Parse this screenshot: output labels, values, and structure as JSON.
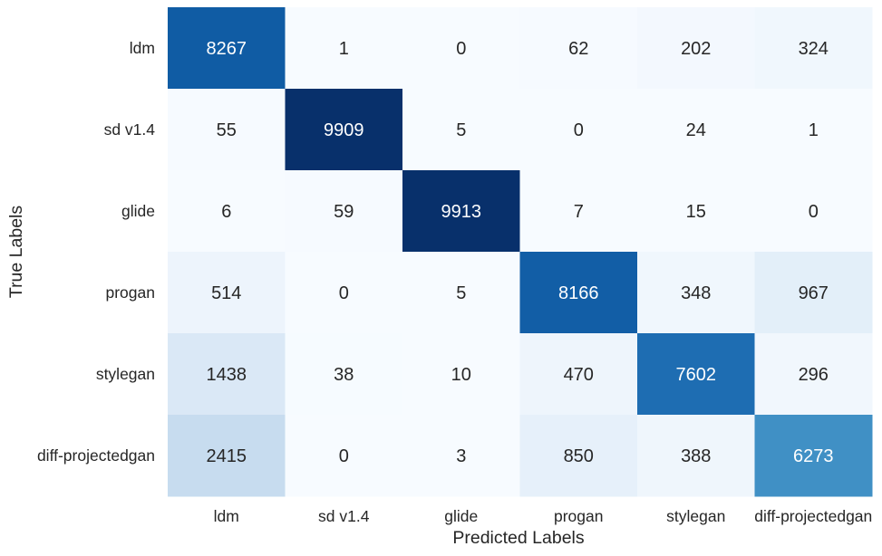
{
  "chart_data": {
    "type": "heatmap",
    "title": "",
    "xlabel": "Predicted Labels",
    "ylabel": "True Labels",
    "x_categories": [
      "ldm",
      "sd v1.4",
      "glide",
      "progan",
      "stylegan",
      "diff-projectedgan"
    ],
    "y_categories": [
      "ldm",
      "sd v1.4",
      "glide",
      "progan",
      "stylegan",
      "diff-projectedgan"
    ],
    "values": [
      [
        8267,
        1,
        0,
        62,
        202,
        324
      ],
      [
        55,
        9909,
        5,
        0,
        24,
        1
      ],
      [
        6,
        59,
        9913,
        7,
        15,
        0
      ],
      [
        514,
        0,
        5,
        8166,
        348,
        967
      ],
      [
        1438,
        38,
        10,
        470,
        7602,
        296
      ],
      [
        2415,
        0,
        3,
        850,
        388,
        6273
      ]
    ],
    "value_range": [
      0,
      9913
    ],
    "colormap": "Blues",
    "colorbar": false,
    "annotations": true
  },
  "colors": {
    "text_dark": "#262626",
    "text_light": "#ffffff",
    "cmap_stops": [
      "#f7fbff",
      "#deebf7",
      "#c6dbef",
      "#9ecae1",
      "#6baed6",
      "#4292c6",
      "#2171b5",
      "#08519c",
      "#08306b"
    ]
  }
}
